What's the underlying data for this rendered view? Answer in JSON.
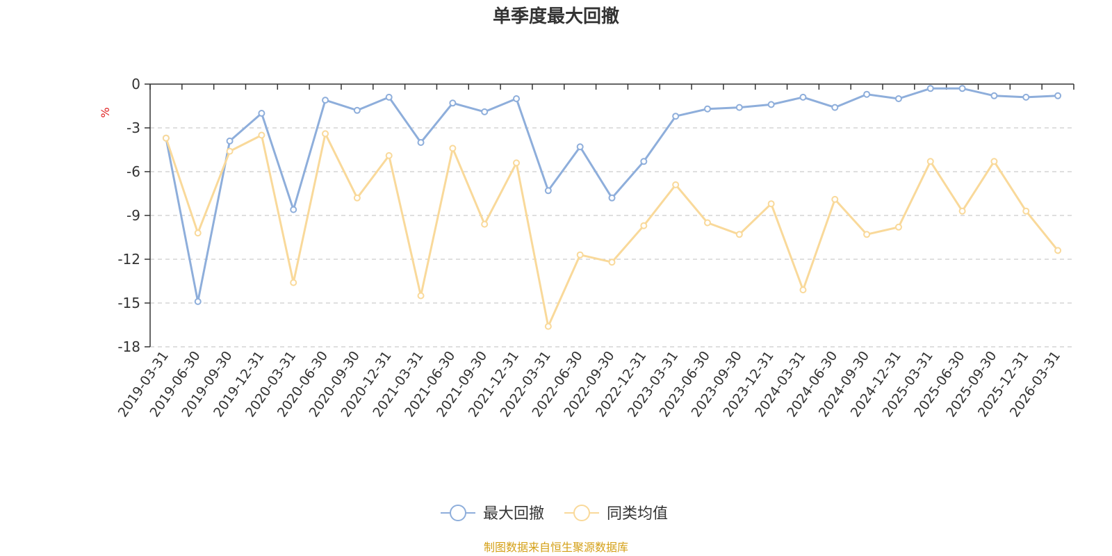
{
  "chart_data": {
    "type": "line",
    "title": "单季度最大回撤",
    "ylabel": "%",
    "ylim": [
      -18,
      0
    ],
    "yticks": [
      0,
      -3,
      -6,
      -9,
      -12,
      -15,
      -18
    ],
    "grid": true,
    "legend_position": "bottom-center",
    "categories": [
      "2019-03-31",
      "2019-06-30",
      "2019-09-30",
      "2019-12-31",
      "2020-03-31",
      "2020-06-30",
      "2020-09-30",
      "2020-12-31",
      "2021-03-31",
      "2021-06-30",
      "2021-09-30",
      "2021-12-31",
      "2022-03-31",
      "2022-06-30",
      "2022-09-30",
      "2022-12-31",
      "2023-03-31",
      "2023-06-30",
      "2023-09-30",
      "2023-12-31",
      "2024-03-31",
      "2024-06-30",
      "2024-09-30",
      "2024-12-31",
      "2025-03-31",
      "2025-06-30",
      "2025-09-30",
      "2025-12-31",
      "2026-03-31"
    ],
    "series": [
      {
        "name": "最大回撤",
        "color": "#8eaedb",
        "values": [
          -3.7,
          -14.9,
          -3.9,
          -2.0,
          -8.6,
          -1.1,
          -1.8,
          -0.9,
          -4.0,
          -1.3,
          -1.9,
          -1.0,
          -7.3,
          -4.3,
          -7.8,
          -5.3,
          -2.2,
          -1.7,
          -1.6,
          -1.4,
          -0.9,
          -1.6,
          -0.7,
          -1.0,
          -0.3,
          -0.3,
          -0.8,
          -0.9,
          -0.8
        ]
      },
      {
        "name": "同类均值",
        "color": "#f9d99a",
        "values": [
          -3.7,
          -10.2,
          -4.6,
          -3.5,
          -13.6,
          -3.4,
          -7.8,
          -4.9,
          -14.5,
          -4.4,
          -9.6,
          -5.4,
          -16.6,
          -11.7,
          -12.2,
          -9.7,
          -6.9,
          -9.5,
          -10.3,
          -8.2,
          -14.1,
          -7.9,
          -10.3,
          -9.8,
          -5.3,
          -8.7,
          -5.3,
          -8.7,
          -11.4
        ]
      }
    ]
  },
  "colors": {
    "unit": "#e02020",
    "source": "#d4a017",
    "axis": "#333333",
    "grid": "#cccccc"
  },
  "source_text": "制图数据来自恒生聚源数据库"
}
